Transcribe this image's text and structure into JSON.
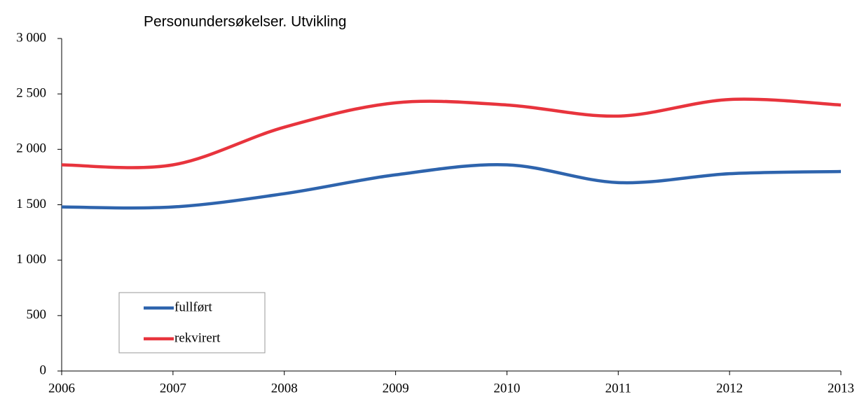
{
  "chart_data": {
    "type": "line",
    "title": "Personundersøkelser. Utvikling",
    "x": [
      2006,
      2007,
      2008,
      2009,
      2010,
      2011,
      2012,
      2013
    ],
    "xlim": [
      2006,
      2013
    ],
    "ylim": [
      0,
      3000
    ],
    "yticks": [
      0,
      500,
      {
        "value": 1000,
        "label": "1 000"
      },
      {
        "value": 1500,
        "label": "1 500"
      },
      {
        "value": 2000,
        "label": "2 000"
      },
      {
        "value": 2500,
        "label": "2 500"
      },
      {
        "value": 3000,
        "label": "3 000"
      }
    ],
    "legend": "lower left",
    "series": [
      {
        "name": "fullført",
        "color": "#2e64ad",
        "values": [
          1480,
          1480,
          1600,
          1770,
          1860,
          1700,
          1780,
          1800
        ]
      },
      {
        "name": "rekvirert",
        "color": "#e8343d",
        "values": [
          1860,
          1860,
          2200,
          2420,
          2400,
          2300,
          2450,
          2400
        ]
      }
    ]
  }
}
